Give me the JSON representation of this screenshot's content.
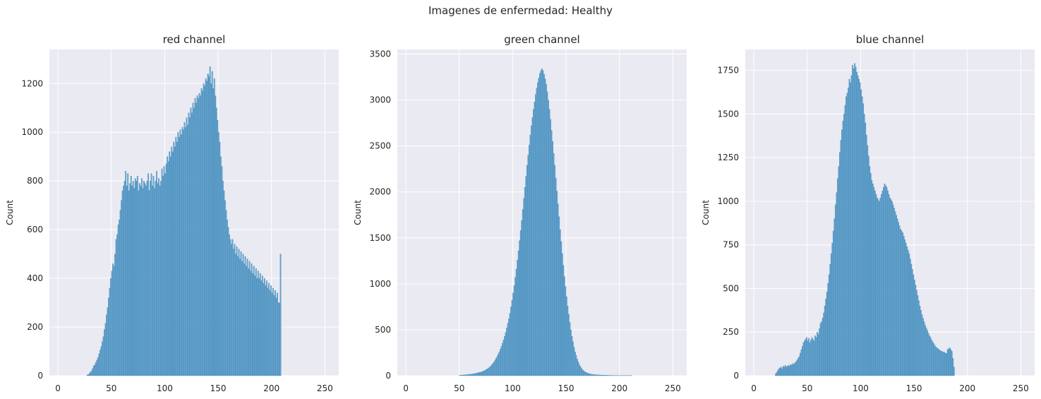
{
  "suptitle": "Imagenes de enfermedad: Healthy",
  "colors": {
    "background": "#eaeaf2",
    "grid": "#ffffff",
    "bar": "#4c96c6",
    "bar_edge": "#3a7fb0"
  },
  "chart_data": [
    {
      "type": "bar",
      "title": "red channel",
      "xlabel": "",
      "ylabel": "Count",
      "xlim": [
        -8,
        263
      ],
      "ylim": [
        0,
        1340
      ],
      "xticks": [
        0,
        50,
        100,
        150,
        200,
        250
      ],
      "yticks": [
        0,
        200,
        400,
        600,
        800,
        1000,
        1200
      ],
      "grid": true,
      "bin_width": 1,
      "x_start": 27,
      "values": [
        3,
        5,
        10,
        15,
        20,
        30,
        40,
        45,
        55,
        65,
        75,
        90,
        105,
        120,
        140,
        160,
        190,
        215,
        250,
        280,
        320,
        360,
        400,
        430,
        460,
        450,
        500,
        560,
        580,
        620,
        640,
        680,
        720,
        760,
        780,
        800,
        840,
        780,
        830,
        760,
        790,
        820,
        780,
        800,
        770,
        810,
        800,
        820,
        760,
        790,
        780,
        810,
        770,
        800,
        790,
        780,
        800,
        830,
        760,
        800,
        830,
        780,
        820,
        770,
        800,
        840,
        790,
        810,
        780,
        800,
        850,
        820,
        860,
        830,
        870,
        900,
        880,
        920,
        900,
        940,
        920,
        960,
        940,
        980,
        960,
        1000,
        980,
        1010,
        990,
        1020,
        1010,
        1040,
        1020,
        1060,
        1030,
        1080,
        1060,
        1100,
        1080,
        1120,
        1100,
        1140,
        1120,
        1150,
        1140,
        1160,
        1150,
        1180,
        1170,
        1200,
        1190,
        1220,
        1210,
        1240,
        1230,
        1270,
        1200,
        1250,
        1180,
        1220,
        1150,
        1100,
        1050,
        1000,
        960,
        900,
        860,
        800,
        760,
        720,
        680,
        640,
        610,
        580,
        560,
        540,
        560,
        520,
        540,
        500,
        530,
        490,
        520,
        480,
        510,
        470,
        500,
        460,
        490,
        450,
        480,
        440,
        470,
        430,
        460,
        420,
        450,
        410,
        440,
        400,
        430,
        400,
        420,
        390,
        410,
        380,
        400,
        370,
        390,
        360,
        380,
        350,
        370,
        340,
        360,
        330,
        350,
        320,
        340,
        300,
        300,
        500
      ]
    },
    {
      "type": "bar",
      "title": "green channel",
      "xlabel": "",
      "ylabel": "Count",
      "xlim": [
        -8,
        263
      ],
      "ylim": [
        0,
        3550
      ],
      "xticks": [
        0,
        50,
        100,
        150,
        200,
        250
      ],
      "yticks": [
        0,
        500,
        1000,
        1500,
        2000,
        2500,
        3000,
        3500
      ],
      "grid": true,
      "bin_width": 1,
      "x_start": 0,
      "values": [
        0,
        0,
        0,
        0,
        0,
        0,
        0,
        0,
        0,
        0,
        0,
        0,
        0,
        0,
        0,
        0,
        0,
        0,
        0,
        0,
        0,
        0,
        0,
        0,
        0,
        0,
        0,
        0,
        0,
        0,
        0,
        0,
        0,
        0,
        0,
        0,
        0,
        0,
        0,
        0,
        0,
        0,
        0,
        0,
        0,
        0,
        0,
        0,
        0,
        0,
        5,
        5,
        6,
        8,
        8,
        10,
        10,
        12,
        14,
        15,
        16,
        18,
        20,
        20,
        25,
        25,
        30,
        32,
        35,
        38,
        40,
        45,
        50,
        55,
        60,
        70,
        75,
        85,
        95,
        105,
        120,
        135,
        150,
        170,
        190,
        210,
        235,
        260,
        290,
        320,
        355,
        390,
        430,
        470,
        520,
        570,
        620,
        680,
        750,
        820,
        900,
        980,
        1070,
        1160,
        1260,
        1360,
        1470,
        1580,
        1690,
        1810,
        1930,
        2050,
        2170,
        2290,
        2400,
        2510,
        2620,
        2720,
        2810,
        2900,
        2980,
        3060,
        3130,
        3190,
        3240,
        3290,
        3320,
        3340,
        3320,
        3280,
        3230,
        3170,
        3090,
        3000,
        2900,
        2790,
        2670,
        2550,
        2420,
        2290,
        2150,
        2010,
        1870,
        1730,
        1590,
        1460,
        1330,
        1200,
        1080,
        970,
        860,
        760,
        670,
        580,
        500,
        430,
        370,
        310,
        260,
        220,
        180,
        150,
        120,
        100,
        80,
        65,
        55,
        45,
        38,
        32,
        27,
        23,
        20,
        17,
        15,
        13,
        12,
        11,
        10,
        9,
        8,
        8,
        7,
        7,
        6,
        6,
        5,
        5,
        5,
        4,
        4,
        4,
        3,
        3,
        3,
        3,
        2,
        2,
        2,
        2,
        2,
        1,
        1,
        1,
        1,
        1,
        1,
        1,
        1,
        1,
        1,
        1,
        0,
        0,
        0,
        0,
        0,
        0,
        0,
        0,
        0,
        0,
        0,
        0,
        0,
        0,
        0,
        0,
        0,
        0,
        0,
        0,
        0,
        0,
        0,
        0,
        0,
        0,
        0,
        0,
        0,
        0,
        0,
        0,
        0,
        0,
        0,
        0,
        0
      ]
    },
    {
      "type": "bar",
      "title": "blue channel",
      "xlabel": "",
      "ylabel": "Count",
      "xlim": [
        -8,
        263
      ],
      "ylim": [
        0,
        1870
      ],
      "xticks": [
        0,
        50,
        100,
        150,
        200,
        250
      ],
      "yticks": [
        0,
        250,
        500,
        750,
        1000,
        1250,
        1500,
        1750
      ],
      "grid": true,
      "bin_width": 1,
      "x_start": 20,
      "values": [
        10,
        20,
        30,
        40,
        45,
        50,
        40,
        55,
        50,
        60,
        50,
        55,
        60,
        55,
        65,
        60,
        70,
        65,
        75,
        80,
        90,
        100,
        110,
        130,
        150,
        170,
        190,
        200,
        210,
        220,
        200,
        215,
        190,
        205,
        220,
        210,
        200,
        230,
        220,
        250,
        240,
        270,
        300,
        310,
        330,
        360,
        400,
        440,
        480,
        530,
        580,
        640,
        700,
        760,
        830,
        900,
        980,
        1050,
        1130,
        1200,
        1280,
        1350,
        1410,
        1460,
        1500,
        1550,
        1600,
        1620,
        1650,
        1700,
        1680,
        1720,
        1780,
        1760,
        1790,
        1770,
        1740,
        1720,
        1700,
        1680,
        1640,
        1600,
        1560,
        1500,
        1450,
        1380,
        1320,
        1260,
        1200,
        1160,
        1120,
        1100,
        1080,
        1060,
        1040,
        1020,
        1010,
        1000,
        1020,
        1040,
        1060,
        1080,
        1100,
        1090,
        1080,
        1060,
        1040,
        1020,
        1010,
        1000,
        980,
        960,
        940,
        920,
        900,
        880,
        860,
        840,
        830,
        820,
        800,
        780,
        760,
        740,
        720,
        700,
        670,
        640,
        610,
        580,
        550,
        520,
        490,
        460,
        430,
        400,
        375,
        350,
        330,
        310,
        290,
        275,
        260,
        245,
        230,
        220,
        205,
        195,
        185,
        175,
        165,
        160,
        155,
        150,
        145,
        140,
        140,
        135,
        135,
        130,
        128,
        150,
        155,
        160,
        150,
        140,
        100,
        50
      ]
    }
  ]
}
